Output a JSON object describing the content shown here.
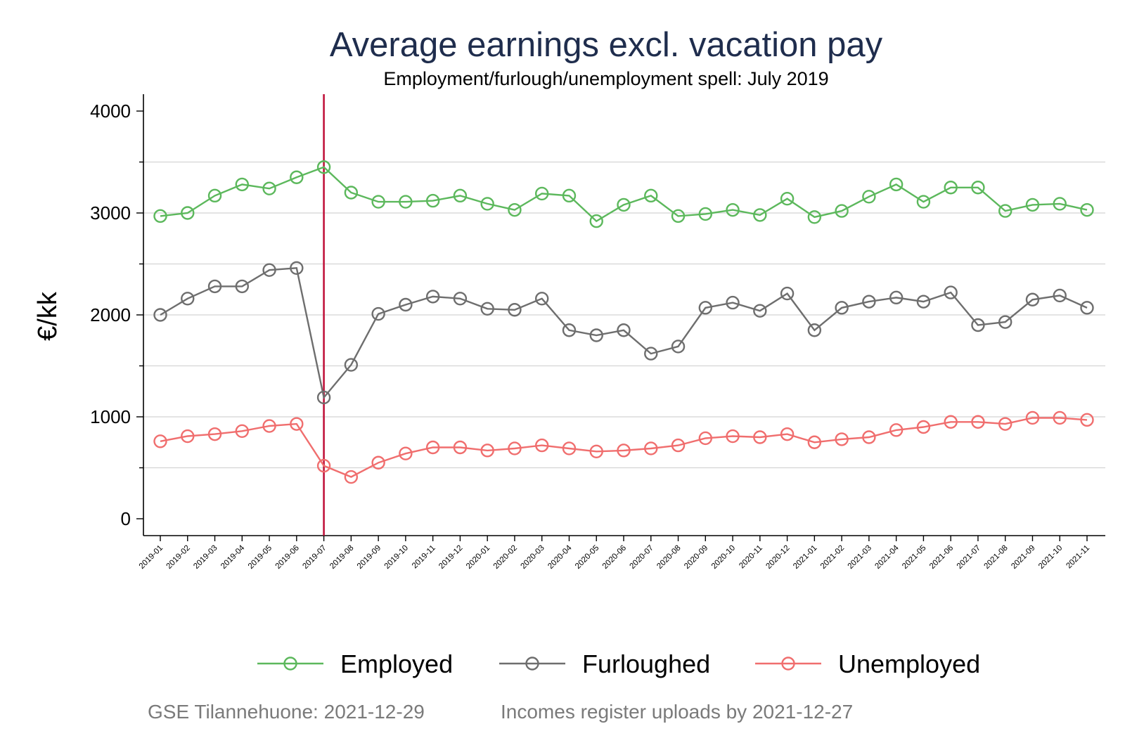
{
  "chart_data": {
    "type": "line",
    "title": "Average earnings excl. vacation pay",
    "subtitle": "Employment/furlough/unemployment spell: July 2019",
    "ylabel": "€/kk",
    "xlabel": "",
    "ylim": [
      0,
      4000
    ],
    "yticks": [
      0,
      1000,
      2000,
      3000,
      4000
    ],
    "grid": true,
    "legend_position": "bottom",
    "reference_line": {
      "x": "2019-07",
      "color": "#c0143c"
    },
    "x": [
      "2019-01",
      "2019-02",
      "2019-03",
      "2019-04",
      "2019-05",
      "2019-06",
      "2019-07",
      "2019-08",
      "2019-09",
      "2019-10",
      "2019-11",
      "2019-12",
      "2020-01",
      "2020-02",
      "2020-03",
      "2020-04",
      "2020-05",
      "2020-06",
      "2020-07",
      "2020-08",
      "2020-09",
      "2020-10",
      "2020-11",
      "2020-12",
      "2021-01",
      "2021-02",
      "2021-03",
      "2021-04",
      "2021-05",
      "2021-06",
      "2021-07",
      "2021-08",
      "2021-09",
      "2021-10",
      "2021-11"
    ],
    "series": [
      {
        "name": "Employed",
        "color": "#5cb85c",
        "values": [
          2970,
          3000,
          3170,
          3280,
          3240,
          3350,
          3450,
          3200,
          3110,
          3110,
          3120,
          3170,
          3090,
          3030,
          3190,
          3170,
          2920,
          3080,
          3170,
          2970,
          2990,
          3030,
          2980,
          3140,
          2960,
          3020,
          3160,
          3280,
          3110,
          3250,
          3250,
          3020,
          3080,
          3090,
          3030
        ]
      },
      {
        "name": "Furloughed",
        "color": "#6e6e6e",
        "values": [
          2000,
          2160,
          2280,
          2280,
          2440,
          2460,
          1190,
          1510,
          2010,
          2100,
          2180,
          2160,
          2060,
          2050,
          2160,
          1850,
          1800,
          1850,
          1620,
          1690,
          2070,
          2120,
          2040,
          2210,
          1850,
          2070,
          2130,
          2170,
          2130,
          2220,
          1900,
          1930,
          2150,
          2190,
          2070
        ]
      },
      {
        "name": "Unemployed",
        "color": "#f06e6e",
        "values": [
          760,
          810,
          830,
          860,
          910,
          930,
          520,
          410,
          550,
          640,
          700,
          700,
          670,
          690,
          720,
          690,
          660,
          670,
          690,
          720,
          790,
          810,
          800,
          830,
          750,
          780,
          800,
          870,
          900,
          950,
          950,
          930,
          990,
          990,
          970
        ]
      }
    ],
    "notes": {
      "left": "GSE Tilannehuone: 2021-12-29",
      "right": "Incomes register uploads by 2021-12-27"
    }
  }
}
